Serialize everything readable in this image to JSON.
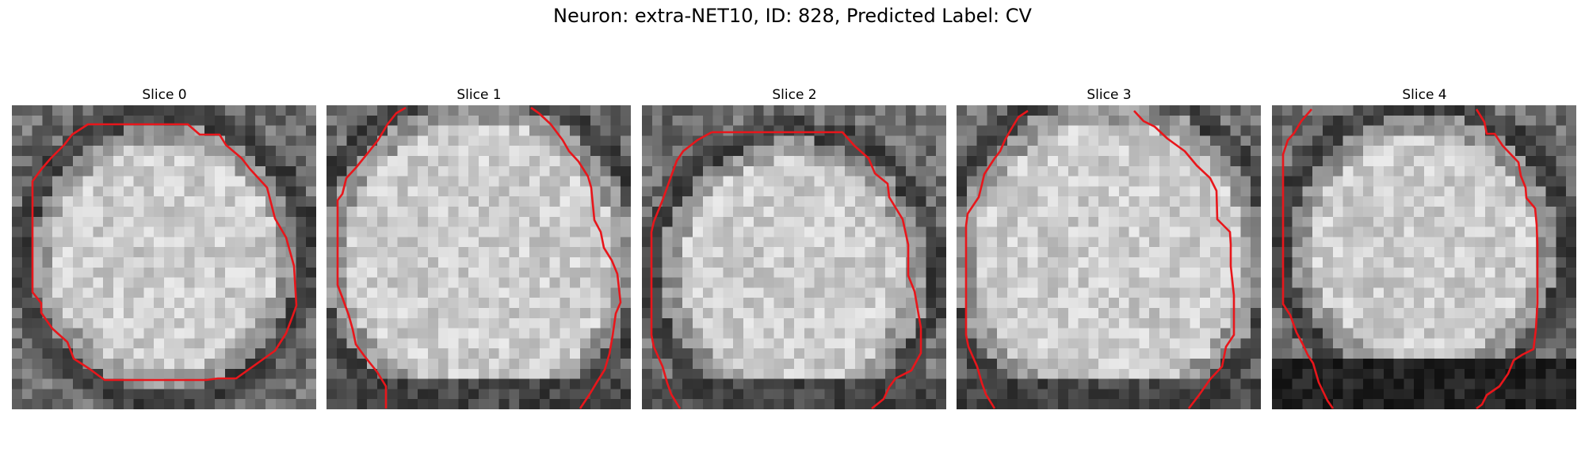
{
  "figure": {
    "title": "Neuron: extra-NET10, ID: 828, Predicted Label: CV"
  },
  "panels": [
    {
      "title": "Slice 0",
      "seed": 11,
      "profile": "disc-center"
    },
    {
      "title": "Slice 1",
      "seed": 23,
      "profile": "disc-wide"
    },
    {
      "title": "Slice 2",
      "seed": 37,
      "profile": "disc-low"
    },
    {
      "title": "Slice 3",
      "seed": 41,
      "profile": "disc-wide"
    },
    {
      "title": "Slice 4",
      "seed": 59,
      "profile": "disc-dark-bottom"
    }
  ],
  "colors": {
    "contour": "#e8161b",
    "background": "#ffffff"
  },
  "grid_size": 30
}
